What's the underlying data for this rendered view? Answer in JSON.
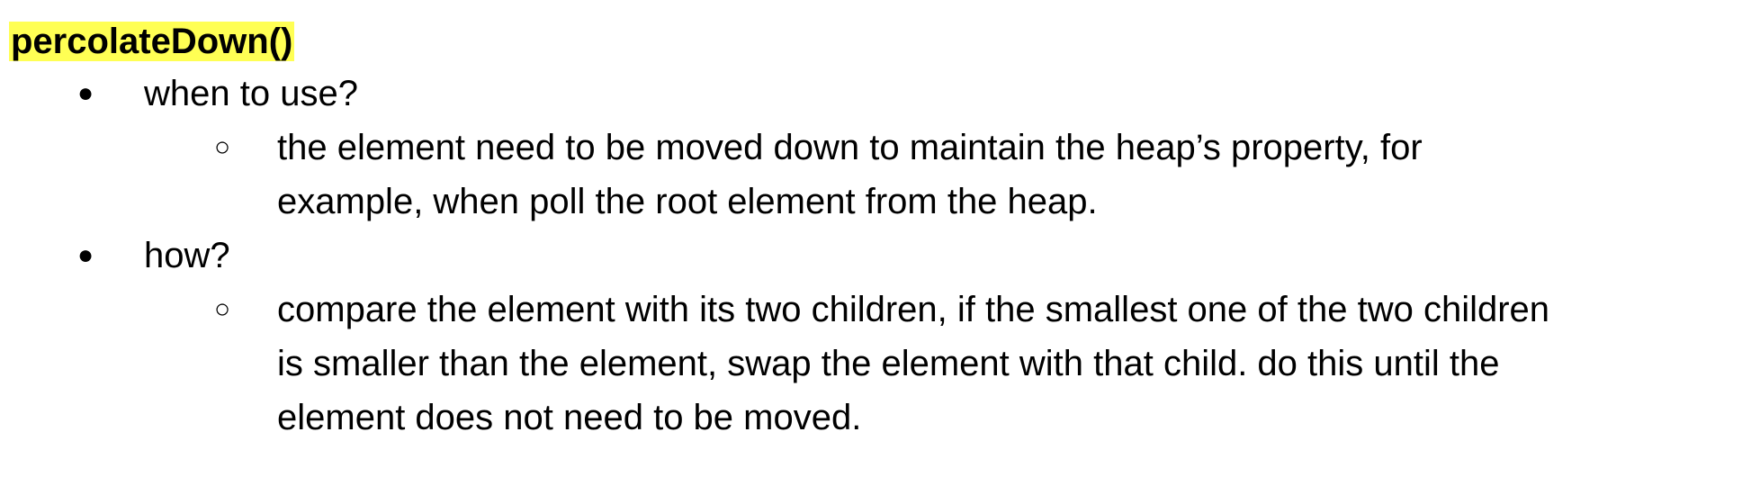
{
  "heading": "percolateDown()",
  "colors": {
    "highlight": "#ffff54",
    "text": "#000000"
  },
  "list": [
    {
      "bullet": "●",
      "text": "when to use?",
      "children": [
        {
          "bullet": "○",
          "lines": [
            "the element need to be moved down to maintain the heap’s property, for",
            "example, when poll the root element from the heap."
          ]
        }
      ]
    },
    {
      "bullet": "●",
      "text": "how?",
      "children": [
        {
          "bullet": "○",
          "lines": [
            "compare the element with its two children, if the smallest one of the two children",
            "is smaller than the element, swap the element with that child. do this until the",
            "element does not need to be moved."
          ]
        }
      ]
    }
  ]
}
